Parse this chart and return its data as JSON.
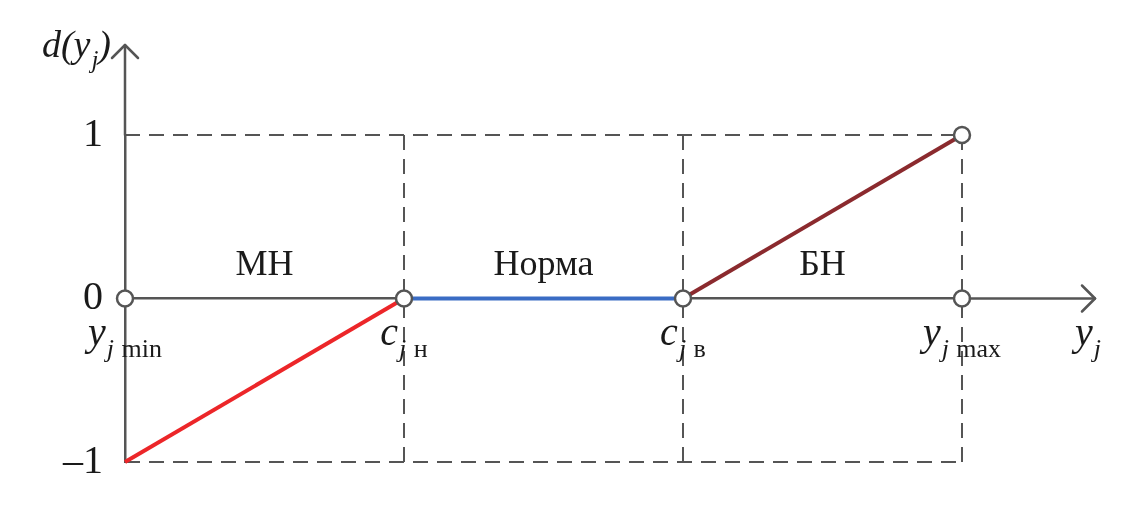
{
  "chart_data": {
    "type": "line",
    "xlabel": "y$_{j}$",
    "ylabel": "d(y$_{j}$)",
    "categories": [
      "y$_{j min}$",
      "c$_{j н}$",
      "c$_{j в}$",
      "y$_{j max}$"
    ],
    "series": [
      {
        "color": "#ec2629",
        "values": [
          -1,
          0,
          null,
          null
        ]
      },
      {
        "color": "#3a6cc4",
        "values": [
          null,
          0,
          0,
          null
        ]
      },
      {
        "color": "#8b2a2e",
        "values": [
          null,
          null,
          0,
          1
        ]
      },
      {
        "type": "scatter",
        "color": "#555555",
        "marker": "circle",
        "x": [
          "y$_{j min}$",
          "c$_{j н}$",
          "c$_{j в}$",
          "y$_{j max}$",
          "y$_{j max}$"
        ],
        "values": [
          0,
          0,
          0,
          0,
          1
        ]
      }
    ],
    "ylim": [
      -1,
      1
    ],
    "yticks": [
      {
        "value": -1,
        "label": "–1"
      },
      0,
      1
    ],
    "ref_lines": [
      {
        "axis": "y",
        "value": 1,
        "color": "#555555",
        "line_style": "dashed"
      },
      {
        "axis": "y",
        "value": -1,
        "color": "#555555",
        "line_style": "dashed"
      },
      {
        "axis": "x",
        "value": "c$_{j н}$",
        "color": "#555555",
        "line_style": "dashed"
      },
      {
        "axis": "x",
        "value": "c$_{j в}$",
        "color": "#555555",
        "line_style": "dashed"
      },
      {
        "axis": "x",
        "value": "y$_{j max}$",
        "color": "#555555",
        "line_style": "dashed"
      }
    ],
    "annotations": [
      "МН",
      "Норма",
      "БН"
    ]
  }
}
